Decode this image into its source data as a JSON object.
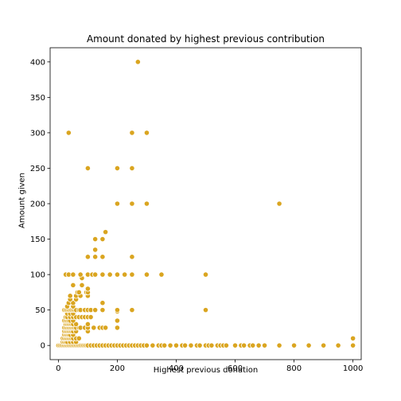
{
  "chart_data": {
    "type": "scatter",
    "title": "Amount donated by highest previous contribution",
    "xlabel": "Highest previous donation",
    "ylabel": "Amount given",
    "xlim": [
      -28,
      1028
    ],
    "ylim": [
      -20,
      420
    ],
    "xticks": [
      0,
      200,
      400,
      600,
      800,
      1000
    ],
    "yticks": [
      0,
      50,
      100,
      150,
      200,
      250,
      300,
      350,
      400
    ],
    "grid": false,
    "legend": "none",
    "marker_color": "#daa520",
    "marker_edge": "#ffffff",
    "points": [
      [
        0,
        0
      ],
      [
        5,
        0
      ],
      [
        10,
        0
      ],
      [
        15,
        0
      ],
      [
        20,
        0
      ],
      [
        25,
        0
      ],
      [
        30,
        0
      ],
      [
        35,
        0
      ],
      [
        40,
        0
      ],
      [
        45,
        0
      ],
      [
        50,
        0
      ],
      [
        55,
        0
      ],
      [
        60,
        0
      ],
      [
        65,
        0
      ],
      [
        70,
        0
      ],
      [
        75,
        0
      ],
      [
        80,
        0
      ],
      [
        85,
        0
      ],
      [
        90,
        0
      ],
      [
        95,
        0
      ],
      [
        100,
        0
      ],
      [
        110,
        0
      ],
      [
        120,
        0
      ],
      [
        130,
        0
      ],
      [
        140,
        0
      ],
      [
        150,
        0
      ],
      [
        160,
        0
      ],
      [
        170,
        0
      ],
      [
        180,
        0
      ],
      [
        190,
        0
      ],
      [
        200,
        0
      ],
      [
        210,
        0
      ],
      [
        220,
        0
      ],
      [
        230,
        0
      ],
      [
        240,
        0
      ],
      [
        250,
        0
      ],
      [
        260,
        0
      ],
      [
        270,
        0
      ],
      [
        280,
        0
      ],
      [
        290,
        0
      ],
      [
        300,
        0
      ],
      [
        320,
        0
      ],
      [
        340,
        0
      ],
      [
        350,
        0
      ],
      [
        360,
        0
      ],
      [
        380,
        0
      ],
      [
        400,
        0
      ],
      [
        420,
        0
      ],
      [
        430,
        0
      ],
      [
        450,
        0
      ],
      [
        470,
        0
      ],
      [
        480,
        0
      ],
      [
        500,
        0
      ],
      [
        510,
        0
      ],
      [
        520,
        0
      ],
      [
        540,
        0
      ],
      [
        550,
        0
      ],
      [
        560,
        0
      ],
      [
        570,
        0
      ],
      [
        600,
        0
      ],
      [
        620,
        0
      ],
      [
        630,
        0
      ],
      [
        650,
        0
      ],
      [
        660,
        0
      ],
      [
        680,
        0
      ],
      [
        700,
        0
      ],
      [
        750,
        0
      ],
      [
        800,
        0
      ],
      [
        850,
        0
      ],
      [
        900,
        0
      ],
      [
        950,
        0
      ],
      [
        1000,
        0
      ],
      [
        15,
        5
      ],
      [
        20,
        5
      ],
      [
        25,
        5
      ],
      [
        30,
        5
      ],
      [
        40,
        5
      ],
      [
        50,
        5
      ],
      [
        60,
        5
      ],
      [
        15,
        10
      ],
      [
        20,
        10
      ],
      [
        25,
        10
      ],
      [
        30,
        10
      ],
      [
        35,
        10
      ],
      [
        40,
        10
      ],
      [
        45,
        10
      ],
      [
        50,
        10
      ],
      [
        60,
        10
      ],
      [
        70,
        10
      ],
      [
        1000,
        10
      ],
      [
        20,
        15
      ],
      [
        25,
        15
      ],
      [
        30,
        15
      ],
      [
        35,
        15
      ],
      [
        40,
        15
      ],
      [
        50,
        15
      ],
      [
        20,
        20
      ],
      [
        25,
        20
      ],
      [
        30,
        20
      ],
      [
        35,
        20
      ],
      [
        40,
        20
      ],
      [
        45,
        20
      ],
      [
        50,
        20
      ],
      [
        60,
        20
      ],
      [
        100,
        20
      ],
      [
        20,
        25
      ],
      [
        25,
        25
      ],
      [
        30,
        25
      ],
      [
        35,
        25
      ],
      [
        40,
        25
      ],
      [
        45,
        25
      ],
      [
        50,
        25
      ],
      [
        55,
        25
      ],
      [
        60,
        25
      ],
      [
        70,
        25
      ],
      [
        75,
        25
      ],
      [
        90,
        25
      ],
      [
        100,
        25
      ],
      [
        120,
        25
      ],
      [
        140,
        25
      ],
      [
        150,
        25
      ],
      [
        160,
        25
      ],
      [
        200,
        25
      ],
      [
        25,
        30
      ],
      [
        30,
        30
      ],
      [
        35,
        30
      ],
      [
        40,
        30
      ],
      [
        45,
        30
      ],
      [
        50,
        30
      ],
      [
        60,
        30
      ],
      [
        100,
        30
      ],
      [
        20,
        35
      ],
      [
        25,
        35
      ],
      [
        30,
        35
      ],
      [
        35,
        35
      ],
      [
        40,
        35
      ],
      [
        50,
        35
      ],
      [
        200,
        35
      ],
      [
        25,
        40
      ],
      [
        30,
        40
      ],
      [
        40,
        40
      ],
      [
        50,
        40
      ],
      [
        60,
        40
      ],
      [
        70,
        40
      ],
      [
        80,
        40
      ],
      [
        90,
        40
      ],
      [
        100,
        40
      ],
      [
        110,
        40
      ],
      [
        30,
        45
      ],
      [
        40,
        45
      ],
      [
        50,
        45
      ],
      [
        20,
        50
      ],
      [
        25,
        50
      ],
      [
        30,
        50
      ],
      [
        35,
        50
      ],
      [
        40,
        50
      ],
      [
        45,
        50
      ],
      [
        50,
        50
      ],
      [
        55,
        50
      ],
      [
        60,
        50
      ],
      [
        70,
        50
      ],
      [
        75,
        50
      ],
      [
        90,
        50
      ],
      [
        100,
        50
      ],
      [
        110,
        50
      ],
      [
        125,
        50
      ],
      [
        150,
        50
      ],
      [
        200,
        48
      ],
      [
        200,
        50
      ],
      [
        250,
        50
      ],
      [
        500,
        50
      ],
      [
        30,
        55
      ],
      [
        50,
        55
      ],
      [
        35,
        60
      ],
      [
        50,
        60
      ],
      [
        150,
        60
      ],
      [
        40,
        65
      ],
      [
        60,
        65
      ],
      [
        40,
        70
      ],
      [
        60,
        70
      ],
      [
        75,
        70
      ],
      [
        100,
        70
      ],
      [
        65,
        75
      ],
      [
        70,
        75
      ],
      [
        95,
        75
      ],
      [
        100,
        75
      ],
      [
        100,
        80
      ],
      [
        50,
        85
      ],
      [
        80,
        85
      ],
      [
        80,
        95
      ],
      [
        25,
        100
      ],
      [
        35,
        100
      ],
      [
        50,
        100
      ],
      [
        75,
        100
      ],
      [
        100,
        100
      ],
      [
        115,
        100
      ],
      [
        125,
        100
      ],
      [
        150,
        100
      ],
      [
        175,
        100
      ],
      [
        200,
        100
      ],
      [
        225,
        100
      ],
      [
        250,
        100
      ],
      [
        300,
        100
      ],
      [
        350,
        100
      ],
      [
        500,
        100
      ],
      [
        100,
        125
      ],
      [
        125,
        125
      ],
      [
        150,
        125
      ],
      [
        250,
        125
      ],
      [
        125,
        135
      ],
      [
        125,
        150
      ],
      [
        150,
        150
      ],
      [
        160,
        160
      ],
      [
        200,
        200
      ],
      [
        250,
        200
      ],
      [
        300,
        200
      ],
      [
        750,
        200
      ],
      [
        100,
        250
      ],
      [
        200,
        250
      ],
      [
        250,
        250
      ],
      [
        35,
        300
      ],
      [
        250,
        300
      ],
      [
        300,
        300
      ],
      [
        270,
        400
      ]
    ]
  }
}
